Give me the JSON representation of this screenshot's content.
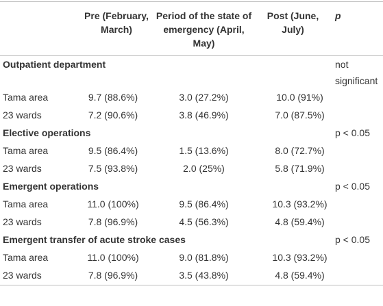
{
  "table": {
    "columns": [
      "Pre (February, March)",
      "Period of the state of emergency (April, May)",
      "Post (June, July)",
      "p"
    ],
    "sections": [
      {
        "title": "Outpatient department",
        "p": "not significant",
        "rows": [
          [
            "Tama area",
            "9.7 (88.6%)",
            "3.0 (27.2%)",
            "10.0 (91%)"
          ],
          [
            "23 wards",
            "7.2 (90.6%)",
            "3.8 (46.9%)",
            "7.0 (87.5%)"
          ]
        ]
      },
      {
        "title": "Elective operations",
        "p": "p < 0.05",
        "rows": [
          [
            "Tama area",
            "9.5 (86.4%)",
            "1.5 (13.6%)",
            "8.0 (72.7%)"
          ],
          [
            "23 wards",
            "7.5 (93.8%)",
            "2.0 (25%)",
            "5.8 (71.9%)"
          ]
        ]
      },
      {
        "title": "Emergent operations",
        "p": "p < 0.05",
        "rows": [
          [
            "Tama area",
            "11.0 (100%)",
            "9.5 (86.4%)",
            "10.3 (93.2%)"
          ],
          [
            "23 wards",
            "7.8 (96.9%)",
            "4.5 (56.3%)",
            "4.8 (59.4%)"
          ]
        ]
      },
      {
        "title": "Emergent transfer of acute stroke cases",
        "p": "p < 0.05",
        "rows": [
          [
            "Tama area",
            "11.0 (100%)",
            "9.0 (81.8%)",
            "10.3 (93.2%)"
          ],
          [
            "23 wards",
            "7.8 (96.9%)",
            "3.5 (43.8%)",
            "4.8 (59.4%)"
          ]
        ]
      }
    ]
  }
}
